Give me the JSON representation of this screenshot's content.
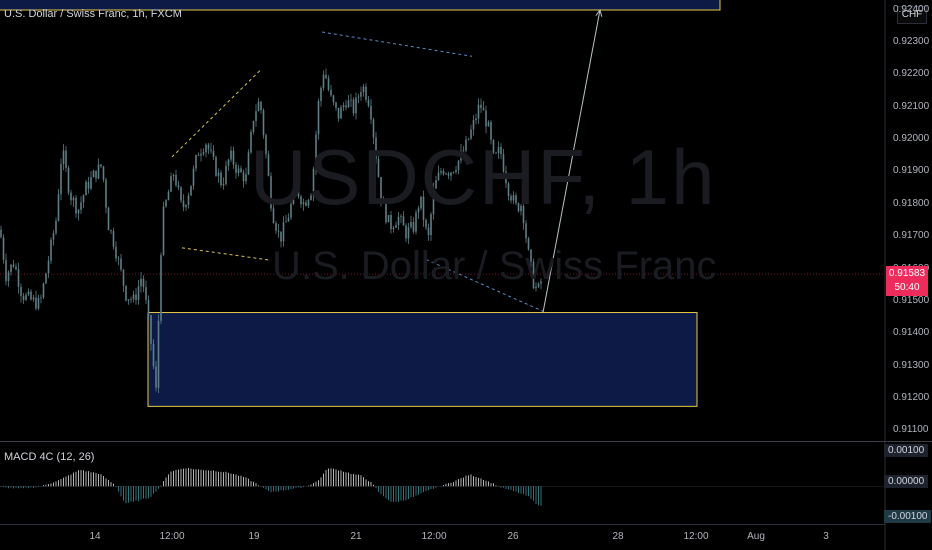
{
  "header": {
    "symbol_title": "U.S. Dollar / Swiss Franc, 1h, FXCM"
  },
  "watermark": {
    "ticker": "USDCHF, 1h",
    "name": "U.S. Dollar / Swiss Franc"
  },
  "currency_button": "CHF",
  "price_badge": {
    "price": "0.91583",
    "countdown": "50:40"
  },
  "macd": {
    "title": "MACD 4C (12, 26)",
    "labels": [
      "0.00100",
      "0.00000",
      "-0.00100"
    ]
  },
  "colors": {
    "background": "#000000",
    "candle": "#5d7f85",
    "zone_fill": "#0c1a45",
    "zone_border": "#e6c84a",
    "trend_yellow": "#d8c45a",
    "trend_blue": "#5a8ac8",
    "projection": "#b8c4c8",
    "price_line": "#ee2b5b",
    "macd_up": "#c8c8c8",
    "macd_down": "#3a7f8a"
  },
  "chart_data": {
    "type": "candlestick",
    "y_axis": {
      "ticks": [
        "0.92400",
        "0.92300",
        "0.92200",
        "0.92100",
        "0.92000",
        "0.91900",
        "0.91800",
        "0.91700",
        "0.91600",
        "0.91500",
        "0.91400",
        "0.91300",
        "0.91200",
        "0.91100"
      ],
      "range": [
        0.9107,
        0.9243
      ]
    },
    "x_axis": {
      "ticks": [
        "14",
        "12:00",
        "19",
        "21",
        "12:00",
        "26",
        "28",
        "12:00",
        "Aug",
        "3"
      ]
    },
    "last_price": 0.91583,
    "close_path": [
      [
        0,
        0.9172
      ],
      [
        6,
        0.9158
      ],
      [
        14,
        0.9162
      ],
      [
        22,
        0.9152
      ],
      [
        32,
        0.915
      ],
      [
        40,
        0.9149
      ],
      [
        48,
        0.9162
      ],
      [
        56,
        0.9175
      ],
      [
        62,
        0.9197
      ],
      [
        70,
        0.9183
      ],
      [
        78,
        0.9178
      ],
      [
        86,
        0.9185
      ],
      [
        94,
        0.9189
      ],
      [
        102,
        0.9192
      ],
      [
        108,
        0.9174
      ],
      [
        114,
        0.9168
      ],
      [
        120,
        0.916
      ],
      [
        126,
        0.9152
      ],
      [
        134,
        0.915
      ],
      [
        142,
        0.9158
      ],
      [
        150,
        0.914
      ],
      [
        156,
        0.9122
      ],
      [
        162,
        0.9175
      ],
      [
        168,
        0.9183
      ],
      [
        174,
        0.919
      ],
      [
        182,
        0.9178
      ],
      [
        190,
        0.9185
      ],
      [
        198,
        0.9196
      ],
      [
        206,
        0.9199
      ],
      [
        214,
        0.9192
      ],
      [
        222,
        0.9186
      ],
      [
        230,
        0.9195
      ],
      [
        238,
        0.919
      ],
      [
        246,
        0.9188
      ],
      [
        254,
        0.9208
      ],
      [
        260,
        0.9212
      ],
      [
        266,
        0.9195
      ],
      [
        272,
        0.9178
      ],
      [
        280,
        0.9169
      ],
      [
        288,
        0.9176
      ],
      [
        296,
        0.9185
      ],
      [
        304,
        0.918
      ],
      [
        312,
        0.9185
      ],
      [
        318,
        0.921
      ],
      [
        324,
        0.9222
      ],
      [
        330,
        0.9213
      ],
      [
        338,
        0.9207
      ],
      [
        346,
        0.9212
      ],
      [
        354,
        0.9209
      ],
      [
        362,
        0.9217
      ],
      [
        370,
        0.9211
      ],
      [
        376,
        0.9195
      ],
      [
        382,
        0.918
      ],
      [
        390,
        0.9173
      ],
      [
        398,
        0.9176
      ],
      [
        406,
        0.9171
      ],
      [
        414,
        0.9173
      ],
      [
        420,
        0.9182
      ],
      [
        428,
        0.9168
      ],
      [
        434,
        0.9185
      ],
      [
        442,
        0.9191
      ],
      [
        450,
        0.919
      ],
      [
        458,
        0.9193
      ],
      [
        466,
        0.9198
      ],
      [
        474,
        0.9205
      ],
      [
        480,
        0.9211
      ],
      [
        488,
        0.9204
      ],
      [
        494,
        0.9193
      ],
      [
        500,
        0.9197
      ],
      [
        508,
        0.9185
      ],
      [
        516,
        0.9179
      ],
      [
        522,
        0.918
      ],
      [
        528,
        0.9165
      ],
      [
        534,
        0.9155
      ],
      [
        538,
        0.9153
      ],
      [
        543,
        0.9158
      ]
    ],
    "annotations": {
      "demand_zone": {
        "from_x": 148,
        "to_x": 697,
        "top": 0.91464,
        "bottom": 0.91174
      },
      "target_zone": {
        "from_x": 0,
        "to_x": 720,
        "top": 0.9243,
        "bottom": 0.9242
      },
      "yellow_channel": {
        "upper": [
          [
            172,
            0.91945
          ],
          [
            260,
            0.92212
          ]
        ],
        "lower": [
          [
            182,
            0.91664
          ],
          [
            270,
            0.91626
          ]
        ]
      },
      "blue_channel": {
        "upper": [
          [
            322,
            0.92331
          ],
          [
            472,
            0.92256
          ]
        ],
        "lower": [
          [
            426,
            0.91628
          ],
          [
            543,
            0.91468
          ]
        ]
      },
      "projection": {
        "from": [
          543,
          0.91464
        ],
        "to": [
          600,
          0.92415
        ]
      }
    },
    "macd_series": {
      "range": [
        -0.00128,
        0.0015
      ],
      "points": [
        [
          0,
          -3e-05
        ],
        [
          20,
          -8e-05
        ],
        [
          40,
          -2e-05
        ],
        [
          60,
          0.00022
        ],
        [
          80,
          0.00056
        ],
        [
          100,
          0.00042
        ],
        [
          115,
          4e-05
        ],
        [
          125,
          -0.00058
        ],
        [
          135,
          -0.00052
        ],
        [
          150,
          -0.00038
        ],
        [
          160,
          -3e-05
        ],
        [
          170,
          0.0005
        ],
        [
          185,
          0.00062
        ],
        [
          200,
          0.00056
        ],
        [
          215,
          0.00053
        ],
        [
          230,
          0.00045
        ],
        [
          245,
          0.0003
        ],
        [
          258,
          6e-05
        ],
        [
          270,
          -0.0002
        ],
        [
          290,
          -0.0001
        ],
        [
          305,
          -2e-05
        ],
        [
          318,
          0.00018
        ],
        [
          328,
          0.00062
        ],
        [
          340,
          0.00054
        ],
        [
          352,
          0.00042
        ],
        [
          362,
          0.00035
        ],
        [
          372,
          0.0001
        ],
        [
          380,
          -0.00025
        ],
        [
          392,
          -0.00055
        ],
        [
          404,
          -0.00048
        ],
        [
          418,
          -0.0003
        ],
        [
          430,
          -0.00012
        ],
        [
          442,
          2e-05
        ],
        [
          455,
          0.00018
        ],
        [
          470,
          0.0004
        ],
        [
          480,
          0.00028
        ],
        [
          494,
          8e-05
        ],
        [
          502,
          -5e-05
        ],
        [
          515,
          -0.00018
        ],
        [
          528,
          -0.00034
        ],
        [
          536,
          -0.00058
        ],
        [
          543,
          -0.00072
        ]
      ]
    }
  }
}
